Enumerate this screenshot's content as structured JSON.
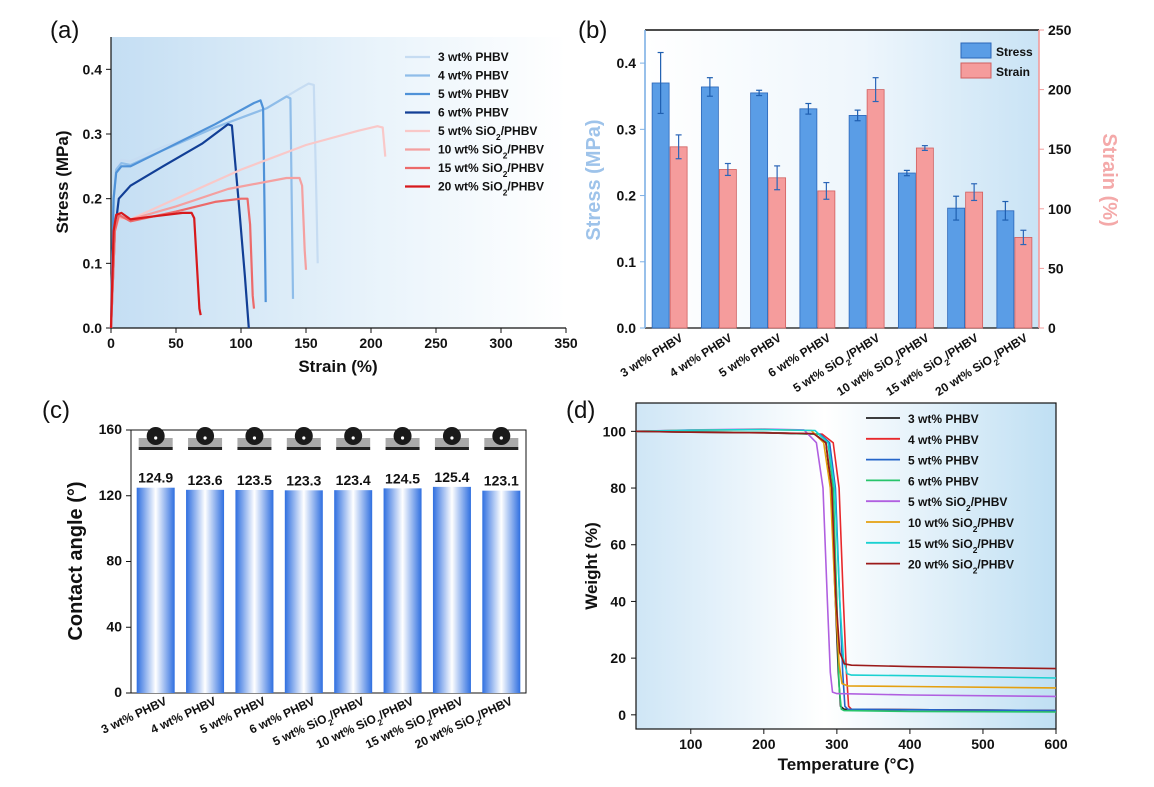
{
  "chart_data": [
    {
      "panel": "(a)",
      "type": "line",
      "xlabel": "Strain (%)",
      "ylabel": "Stress (MPa)",
      "xlim": [
        0,
        350
      ],
      "ylim": [
        0,
        0.45
      ],
      "xticks": [
        "0",
        "50",
        "100",
        "150",
        "200",
        "250",
        "300",
        "350"
      ],
      "yticks": [
        "0.0",
        "0.1",
        "0.2",
        "0.3",
        "0.4"
      ],
      "legend_position": "top-right",
      "series": [
        {
          "name": "3 wt% PHBV",
          "label": [
            "3 wt% PHBV"
          ],
          "color": "#c6dcf2",
          "points": [
            [
              0,
              0
            ],
            [
              2,
              0.2
            ],
            [
              4,
              0.25
            ],
            [
              8,
              0.26
            ],
            [
              15,
              0.258
            ],
            [
              40,
              0.28
            ],
            [
              80,
              0.31
            ],
            [
              120,
              0.34
            ],
            [
              145,
              0.37
            ],
            [
              152,
              0.378
            ],
            [
              156,
              0.376
            ],
            [
              158,
              0.2
            ],
            [
              159,
              0.1
            ]
          ]
        },
        {
          "name": "4 wt% PHBV",
          "label": [
            "4 wt% PHBV"
          ],
          "color": "#8fbde9",
          "points": [
            [
              0,
              0
            ],
            [
              2,
              0.2
            ],
            [
              4,
              0.245
            ],
            [
              8,
              0.255
            ],
            [
              15,
              0.252
            ],
            [
              40,
              0.275
            ],
            [
              80,
              0.31
            ],
            [
              120,
              0.34
            ],
            [
              135,
              0.358
            ],
            [
              138,
              0.355
            ],
            [
              139,
              0.2
            ],
            [
              140,
              0.045
            ]
          ]
        },
        {
          "name": "5 wt% PHBV",
          "label": [
            "5 wt% PHBV"
          ],
          "color": "#4f92d8",
          "points": [
            [
              0,
              0
            ],
            [
              2,
              0.2
            ],
            [
              4,
              0.24
            ],
            [
              8,
              0.25
            ],
            [
              15,
              0.25
            ],
            [
              40,
              0.275
            ],
            [
              80,
              0.315
            ],
            [
              110,
              0.348
            ],
            [
              115,
              0.352
            ],
            [
              117,
              0.34
            ],
            [
              118,
              0.2
            ],
            [
              119,
              0.04
            ]
          ]
        },
        {
          "name": "6 wt% PHBV",
          "label": [
            "6 wt% PHBV"
          ],
          "color": "#123f96",
          "points": [
            [
              0,
              0
            ],
            [
              3,
              0.15
            ],
            [
              6,
              0.2
            ],
            [
              15,
              0.22
            ],
            [
              40,
              0.25
            ],
            [
              70,
              0.285
            ],
            [
              90,
              0.315
            ],
            [
              93,
              0.313
            ],
            [
              98,
              0.2
            ],
            [
              103,
              0.08
            ],
            [
              106,
              0
            ]
          ]
        },
        {
          "name": "5 wt% SiO2/PHBV",
          "label": [
            "5 wt% SiO",
            "2",
            "/PHBV"
          ],
          "color": "#f9c8c8",
          "points": [
            [
              0,
              0
            ],
            [
              3,
              0.15
            ],
            [
              6,
              0.17
            ],
            [
              15,
              0.168
            ],
            [
              50,
              0.2
            ],
            [
              100,
              0.245
            ],
            [
              150,
              0.283
            ],
            [
              190,
              0.305
            ],
            [
              205,
              0.312
            ],
            [
              209,
              0.31
            ],
            [
              211,
              0.265
            ]
          ]
        },
        {
          "name": "10 wt% SiO2/PHBV",
          "label": [
            "10 wt% SiO",
            "2",
            "/PHBV"
          ],
          "color": "#f4a0a0",
          "points": [
            [
              0,
              0
            ],
            [
              3,
              0.15
            ],
            [
              6,
              0.172
            ],
            [
              15,
              0.168
            ],
            [
              50,
              0.188
            ],
            [
              90,
              0.215
            ],
            [
              135,
              0.232
            ],
            [
              145,
              0.232
            ],
            [
              147,
              0.22
            ],
            [
              149,
              0.12
            ],
            [
              150,
              0.09
            ]
          ]
        },
        {
          "name": "15 wt% SiO2/PHBV",
          "label": [
            "15 wt% SiO",
            "2",
            "/PHBV"
          ],
          "color": "#ec6a6a",
          "points": [
            [
              0,
              0
            ],
            [
              3,
              0.15
            ],
            [
              6,
              0.175
            ],
            [
              15,
              0.165
            ],
            [
              50,
              0.18
            ],
            [
              80,
              0.195
            ],
            [
              100,
              0.2
            ],
            [
              105,
              0.2
            ],
            [
              107,
              0.16
            ],
            [
              109,
              0.05
            ],
            [
              110,
              0.03
            ]
          ]
        },
        {
          "name": "20 wt% SiO2/PHBV",
          "label": [
            "20 wt% SiO",
            "2",
            "/PHBV"
          ],
          "color": "#d7191c",
          "points": [
            [
              0,
              0
            ],
            [
              2,
              0.15
            ],
            [
              4,
              0.175
            ],
            [
              8,
              0.178
            ],
            [
              15,
              0.168
            ],
            [
              30,
              0.172
            ],
            [
              55,
              0.178
            ],
            [
              62,
              0.178
            ],
            [
              64,
              0.17
            ],
            [
              66,
              0.1
            ],
            [
              68,
              0.03
            ],
            [
              69,
              0.02
            ]
          ]
        }
      ]
    },
    {
      "panel": "(b)",
      "type": "bar",
      "ylabel_left": "Stress (MPa)",
      "ylabel_right": "Strain (%)",
      "ylim_left": [
        0,
        0.45
      ],
      "ylim_right": [
        0,
        250
      ],
      "yticks_left": [
        "0.0",
        "0.1",
        "0.2",
        "0.3",
        "0.4"
      ],
      "yticks_right": [
        "0",
        "50",
        "100",
        "150",
        "200",
        "250"
      ],
      "categories": [
        [
          "3 wt% PHBV"
        ],
        [
          "4 wt% PHBV"
        ],
        [
          "5 wt% PHBV"
        ],
        [
          "6 wt% PHBV"
        ],
        [
          "5 wt% SiO",
          "2",
          "/PHBV"
        ],
        [
          "10 wt% SiO",
          "2",
          "/PHBV"
        ],
        [
          "15 wt% SiO",
          "2",
          "/PHBV"
        ],
        [
          "20 wt%  SiO",
          "2",
          "/PHBV"
        ]
      ],
      "legend": [
        "Stress",
        "Strain"
      ],
      "colors": {
        "stress": "#5a9de6",
        "strain": "#f59c9c"
      },
      "stress": [
        0.37,
        0.364,
        0.355,
        0.331,
        0.321,
        0.234,
        0.181,
        0.177
      ],
      "stress_err": [
        0.046,
        0.014,
        0.004,
        0.008,
        0.008,
        0.004,
        0.018,
        0.014
      ],
      "strain": [
        152,
        133,
        126,
        115,
        200,
        151,
        114,
        76
      ],
      "strain_err": [
        10,
        5,
        10,
        7,
        10,
        2,
        7,
        6
      ]
    },
    {
      "panel": "(c)",
      "type": "bar",
      "ylabel": "Contact angle (°)",
      "ylim": [
        0,
        160
      ],
      "yticks": [
        "0",
        "40",
        "80",
        "120",
        "160"
      ],
      "categories": [
        [
          "3 wt% PHBV"
        ],
        [
          "4 wt% PHBV"
        ],
        [
          "5 wt% PHBV"
        ],
        [
          "6 wt% PHBV"
        ],
        [
          "5 wt% SiO",
          "2",
          "/PHBV"
        ],
        [
          "10 wt% SiO",
          "2",
          "/PHBV"
        ],
        [
          "15 wt% SiO",
          "2",
          "/PHBV"
        ],
        [
          "20 wt% SiO",
          "2",
          "/PHBV"
        ]
      ],
      "values": [
        124.9,
        123.6,
        123.5,
        123.3,
        123.4,
        124.5,
        125.4,
        123.1
      ],
      "value_labels": [
        "124.9",
        "123.6",
        "123.5",
        "123.3",
        "123.4",
        "124.5",
        "125.4",
        "123.1"
      ]
    },
    {
      "panel": "(d)",
      "type": "line",
      "xlabel": "Temperature (°C)",
      "ylabel": "Weight (%)",
      "xlim": [
        25,
        600
      ],
      "ylim": [
        -5,
        110
      ],
      "xticks": [
        "100",
        "200",
        "300",
        "400",
        "500",
        "600"
      ],
      "yticks": [
        "0",
        "20",
        "40",
        "60",
        "80",
        "100"
      ],
      "legend_position": "top-right",
      "series": [
        {
          "name": "3 wt% PHBV",
          "label": [
            "3 wt% PHBV"
          ],
          "color": "#222222",
          "points": [
            [
              25,
              100
            ],
            [
              100,
              99.7
            ],
            [
              200,
              99.5
            ],
            [
              270,
              99
            ],
            [
              285,
              96
            ],
            [
              292,
              80
            ],
            [
              298,
              40
            ],
            [
              302,
              15
            ],
            [
              305,
              3
            ],
            [
              310,
              2
            ],
            [
              400,
              1.8
            ],
            [
              600,
              1.5
            ]
          ]
        },
        {
          "name": "4 wt% PHBV",
          "label": [
            "4 wt% PHBV"
          ],
          "color": "#e8282b",
          "points": [
            [
              25,
              100
            ],
            [
              100,
              99.8
            ],
            [
              200,
              99.6
            ],
            [
              280,
              99
            ],
            [
              295,
              96
            ],
            [
              303,
              80
            ],
            [
              309,
              40
            ],
            [
              313,
              15
            ],
            [
              316,
              3
            ],
            [
              320,
              2
            ],
            [
              400,
              1.8
            ],
            [
              600,
              1.5
            ]
          ]
        },
        {
          "name": "5 wt% PHBV",
          "label": [
            "5 wt% PHBV"
          ],
          "color": "#2465c9",
          "points": [
            [
              25,
              100
            ],
            [
              100,
              99.8
            ],
            [
              200,
              99.6
            ],
            [
              277,
              99
            ],
            [
              290,
              96
            ],
            [
              298,
              80
            ],
            [
              304,
              40
            ],
            [
              308,
              15
            ],
            [
              311,
              3
            ],
            [
              315,
              2
            ],
            [
              400,
              1.8
            ],
            [
              600,
              1.5
            ]
          ]
        },
        {
          "name": "6 wt% PHBV",
          "label": [
            "6 wt% PHBV"
          ],
          "color": "#27c46b",
          "points": [
            [
              25,
              100
            ],
            [
              100,
              99.8
            ],
            [
              200,
              99.6
            ],
            [
              275,
              99
            ],
            [
              288,
              96
            ],
            [
              295,
              80
            ],
            [
              300,
              40
            ],
            [
              303,
              10
            ],
            [
              306,
              2
            ],
            [
              310,
              1.5
            ],
            [
              400,
              1.2
            ],
            [
              600,
              1
            ]
          ]
        },
        {
          "name": "5 wt% SiO2/PHBV",
          "label": [
            "5 wt% SiO",
            "2",
            "/PHBV"
          ],
          "color": "#b05fe0",
          "points": [
            [
              25,
              100
            ],
            [
              100,
              100.5
            ],
            [
              200,
              100.8
            ],
            [
              255,
              100.5
            ],
            [
              272,
              96
            ],
            [
              281,
              80
            ],
            [
              287,
              40
            ],
            [
              291,
              15
            ],
            [
              294,
              8
            ],
            [
              300,
              7.5
            ],
            [
              400,
              7
            ],
            [
              600,
              6.5
            ]
          ]
        },
        {
          "name": "10 wt% SiO2/PHBV",
          "label": [
            "10 wt%  SiO",
            "2",
            "/PHBV"
          ],
          "color": "#e4a010",
          "points": [
            [
              25,
              100
            ],
            [
              100,
              100.4
            ],
            [
              200,
              100.6
            ],
            [
              265,
              100.3
            ],
            [
              282,
              96
            ],
            [
              291,
              80
            ],
            [
              298,
              40
            ],
            [
              303,
              18
            ],
            [
              307,
              11
            ],
            [
              315,
              10.2
            ],
            [
              400,
              10
            ],
            [
              600,
              9.5
            ]
          ]
        },
        {
          "name": "15 wt% SiO2/PHBV",
          "label": [
            "15 wt%  SiO",
            "2",
            "/PHBV"
          ],
          "color": "#1ad1d1",
          "points": [
            [
              25,
              100
            ],
            [
              100,
              100.4
            ],
            [
              200,
              100.6
            ],
            [
              270,
              100.3
            ],
            [
              288,
              96
            ],
            [
              297,
              80
            ],
            [
              304,
              40
            ],
            [
              309,
              20
            ],
            [
              314,
              14.5
            ],
            [
              320,
              14
            ],
            [
              400,
              13.8
            ],
            [
              600,
              13
            ]
          ]
        },
        {
          "name": "20 wt% SiO2/PHBV",
          "label": [
            "20 wt%  SiO",
            "2",
            "/PHBV"
          ],
          "color": "#9b1a1a",
          "points": [
            [
              25,
              100
            ],
            [
              100,
              99.7
            ],
            [
              200,
              99.5
            ],
            [
              268,
              99.2
            ],
            [
              285,
              96
            ],
            [
              293,
              80
            ],
            [
              299,
              40
            ],
            [
              304,
              22
            ],
            [
              310,
              18
            ],
            [
              320,
              17.5
            ],
            [
              400,
              17
            ],
            [
              600,
              16.3
            ]
          ]
        }
      ]
    }
  ]
}
